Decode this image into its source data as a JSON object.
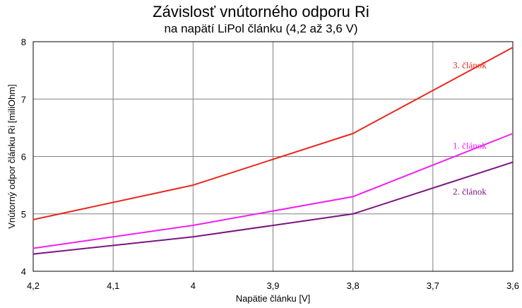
{
  "chart_data": {
    "type": "line",
    "title": "Závislosť vnútorného odporu Ri",
    "subtitle": "na napätí LiPol článku (4,2 až 3,6 V)",
    "xlabel": "Napätie článku  [V]",
    "ylabel": "Vnútorný odpor článku Ri  [miliOhm]",
    "x": [
      4.2,
      4.1,
      4.0,
      3.9,
      3.8,
      3.7,
      3.6
    ],
    "x_tick_labels": [
      "4,2",
      "4,1",
      "4",
      "3,9",
      "3,8",
      "3,7",
      "3,6"
    ],
    "xlim": [
      4.2,
      3.6
    ],
    "ylim": [
      4,
      8
    ],
    "y_ticks": [
      4,
      5,
      6,
      7,
      8
    ],
    "grid": true,
    "series": [
      {
        "name": "3. článok",
        "color": "#e8281e",
        "x": [
          4.2,
          4.0,
          3.8,
          3.6
        ],
        "values": [
          4.9,
          5.5,
          6.4,
          7.9
        ],
        "label_at": [
          3.675,
          7.6
        ]
      },
      {
        "name": "1. článok",
        "color": "#f01ef0",
        "x": [
          4.2,
          4.0,
          3.8,
          3.6
        ],
        "values": [
          4.4,
          4.8,
          5.3,
          6.4
        ],
        "label_at": [
          3.675,
          6.2
        ]
      },
      {
        "name": "2. článok",
        "color": "#7a1480",
        "x": [
          4.2,
          4.0,
          3.8,
          3.6
        ],
        "values": [
          4.3,
          4.6,
          5.0,
          5.9
        ],
        "label_at": [
          3.675,
          5.4
        ]
      }
    ]
  }
}
